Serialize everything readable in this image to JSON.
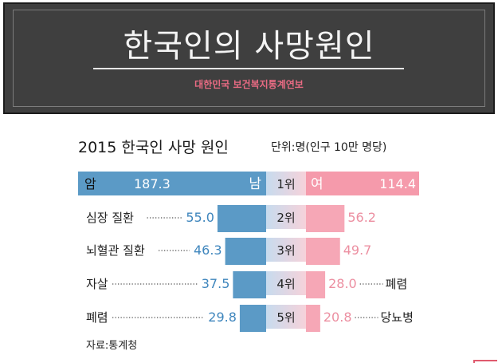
{
  "banner": {
    "title": "한국인의 사망원인",
    "subtitle": "대한민국 보건복지통계연보"
  },
  "header": {
    "title": "2015 한국인 사망 원인",
    "unit": "단위:명(인구 10만 명당)"
  },
  "source": "자료:통계청",
  "colors": {
    "male_bar": "#5b9ac6",
    "male_text": "#3f86bd",
    "female_bar": "#f6a7b6",
    "female_text": "#ec8fa1",
    "female_top_bg": "#f59aab",
    "rank_bg": "#d4e2f0"
  },
  "chart_data": {
    "type": "bar",
    "male_max": 187.3,
    "female_max": 114.4,
    "rows": [
      {
        "rank": "1위",
        "male_label": "암",
        "male_value": 187.3,
        "female_label": "",
        "female_value": 114.4,
        "male_side_tag": "남",
        "female_side_tag": "여"
      },
      {
        "rank": "2위",
        "male_label": "심장 질환",
        "male_value": 55.0,
        "female_label": "",
        "female_value": 56.2
      },
      {
        "rank": "3위",
        "male_label": "뇌혈관 질환",
        "male_value": 46.3,
        "female_label": "",
        "female_value": 49.7
      },
      {
        "rank": "4위",
        "male_label": "자살",
        "male_value": 37.5,
        "female_label": "폐렴",
        "female_value": 28.0
      },
      {
        "rank": "5위",
        "male_label": "폐렴",
        "male_value": 29.8,
        "female_label": "당뇨병",
        "female_value": 20.8
      }
    ]
  }
}
